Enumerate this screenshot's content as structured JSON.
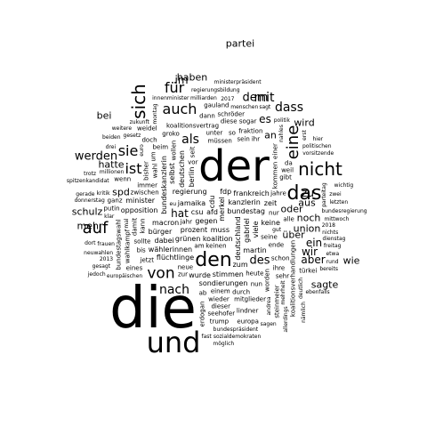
{
  "cloud": {
    "text_color": "#000000",
    "background": "#ffffff",
    "words": [
      "die",
      "der",
      "und",
      "den",
      "das",
      "sich",
      "nicht",
      "eine",
      "auf",
      "ist",
      "von",
      "ein",
      "für",
      "auch",
      "mit",
      "sie",
      "als",
      "nach",
      "dass",
      "werden",
      "des",
      "dem",
      "im",
      "es",
      "hat",
      "wir",
      "aber",
      "zu",
      "aus",
      "haben",
      "an",
      "hatte",
      "wird",
      "bei",
      "oder",
      "über",
      "noch",
      "mehr",
      "union",
      "wie",
      "sagte",
      "schulz",
      "spd",
      "partei",
      "afd",
      "merkel",
      "gegen",
      "cdu",
      "muss",
      "csu",
      "jamaika",
      "koalition",
      "bundestag",
      "regierung",
      "deutschland",
      "prozent",
      "gabriel",
      "kanzlerin",
      "fdp",
      "grünen",
      "berlin",
      "frankreich",
      "wählerinnen",
      "viele",
      "macron",
      "bundeskanzlerin",
      "flüchtlinge",
      "bürger",
      "martin",
      "stimmen",
      "deutschen",
      "keine",
      "selbst",
      "dabei",
      "sondierungen",
      "opposition",
      "zeit",
      "minister",
      "zum",
      "wurde",
      "keinen",
      "zwischen",
      "seine",
      "jahr",
      "jahre",
      "neue",
      "vor",
      "immer",
      "ende",
      "kommen",
      "müssen",
      "kann",
      "nur",
      "heute",
      "wahl",
      "sollte",
      "wollen",
      "einem",
      "unter",
      "schon",
      "damit",
      "bisher",
      "alle",
      "sein",
      "gibt",
      "jetzt",
      "worden",
      "beim",
      "durch",
      "um",
      "am",
      "ab",
      "bis",
      "seit",
      "zur",
      "so",
      "nun",
      "wieder",
      "wahlkampf",
      "bundestagswahl",
      "koalitionsvertrag",
      "koalitionsverhandlungen",
      "groko",
      "fraktion",
      "mitglieder",
      "einer",
      "ihre",
      "ihr",
      "diese",
      "dieser",
      "eines",
      "weil",
      "wenn",
      "dann",
      "doch",
      "da",
      "sehr",
      "sogar",
      "ganz",
      "schröder",
      "steinmeier",
      "seehofer",
      "lindner",
      "weidel",
      "gauland",
      "trump",
      "putin",
      "erdogan",
      "türkei",
      "europa",
      "europäischen",
      "eu",
      "gesetz",
      "millionen",
      "milliarden",
      "euro",
      "menschen",
      "frauen",
      "bundespräsident",
      "parteitag",
      "vorsitzende",
      "kritik",
      "regierungsbildung",
      "neuwahlen",
      "mehrheit",
      "sozialdemokraten",
      "spitzenkandidat",
      "zukunft",
      "politik",
      "politischen",
      "bundesregierung",
      "ministerpräsident",
      "innenminister",
      "andrea",
      "nahles",
      "2017",
      "2018",
      "2013",
      "dienstag",
      "mittwoch",
      "donnerstag",
      "montag",
      "freitag",
      "gut",
      "klar",
      "deutlich",
      "sagen",
      "sagt",
      "gesagt",
      "erst",
      "letzten",
      "zwei",
      "drei",
      "beiden",
      "weitere",
      "etwa",
      "allerdings",
      "ebenfalls",
      "bereits",
      "gerade",
      "fast",
      "möglich",
      "wichtig",
      "nichts",
      "rund",
      "jedoch",
      "mal",
      "dort",
      "hier",
      "nämlich",
      "trotz"
    ]
  }
}
